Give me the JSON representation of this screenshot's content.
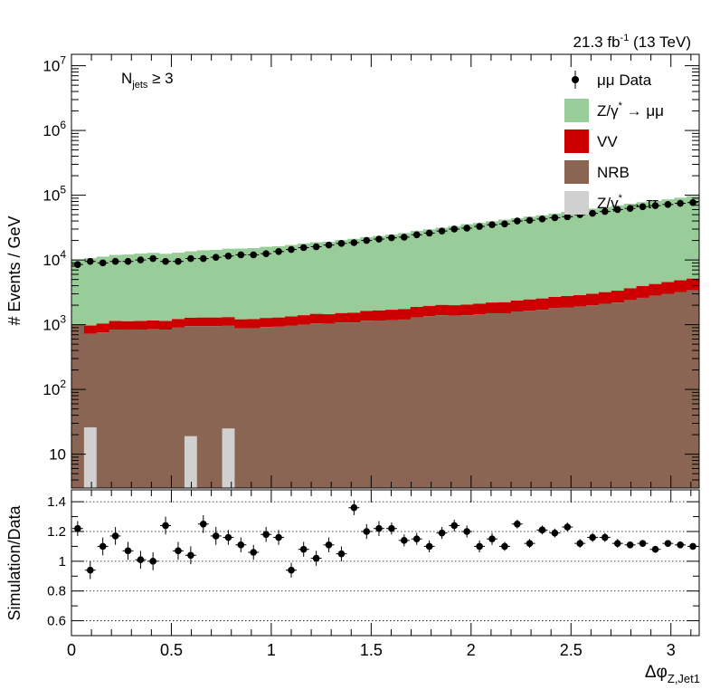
{
  "lumi_label": "21.3 fb",
  "lumi_sup": "-1",
  "lumi_energy": " (13 TeV)",
  "njets_main": "N",
  "njets_sub": "jets",
  "njets_cond": " ≥ 3",
  "chart_data": [
    {
      "type": "area",
      "panel": "main",
      "ylabel": "# Events / GeV",
      "yscale": "log",
      "xlim": [
        0,
        3.1416
      ],
      "ylim": [
        3,
        15000000
      ],
      "y_tick_labels": [
        {
          "v": 10,
          "base": "10",
          "exp": ""
        },
        {
          "v": 100,
          "base": "10",
          "exp": "2"
        },
        {
          "v": 1000,
          "base": "10",
          "exp": "3"
        },
        {
          "v": 10000,
          "base": "10",
          "exp": "4"
        },
        {
          "v": 100000,
          "base": "10",
          "exp": "5"
        },
        {
          "v": 1000000,
          "base": "10",
          "exp": "6"
        },
        {
          "v": 10000000,
          "base": "10",
          "exp": "7"
        }
      ],
      "legend_position": "top-right",
      "legend": [
        {
          "name": "μμ Data",
          "style": "marker",
          "color": "#000000"
        },
        {
          "name": "Z/γ* → μμ",
          "base": "Z/γ",
          "sup": "*",
          "tail": " → μμ",
          "style": "fill",
          "color": "#98cc98"
        },
        {
          "name": "VV",
          "style": "fill",
          "color": "#cc0000"
        },
        {
          "name": "NRB",
          "style": "fill",
          "color": "#8b6553"
        },
        {
          "name": "Z/γ* → ττ",
          "base": "Z/γ",
          "sup": "*",
          "tail": " → ττ",
          "style": "fill",
          "color": "#d0d0d0"
        }
      ],
      "bins": {
        "nbins": 50,
        "xmin": 0,
        "xmax": 3.1416
      },
      "series": [
        {
          "name": "Z/γ* → ττ",
          "color": "#d0d0d0",
          "values": [
            0,
            26,
            0,
            0,
            0,
            0,
            0,
            0,
            0,
            19,
            0,
            0,
            25,
            0,
            0,
            0,
            0,
            0,
            0,
            0,
            0,
            0,
            0,
            0,
            0,
            0,
            0,
            0,
            0,
            0,
            0,
            0,
            0,
            0,
            0,
            0,
            0,
            0,
            0,
            0,
            0,
            0,
            0,
            0,
            0,
            0,
            0,
            0,
            0,
            0
          ]
        },
        {
          "name": "NRB",
          "color": "#8b6553",
          "values": [
            1000,
            720,
            760,
            840,
            830,
            840,
            850,
            840,
            900,
            950,
            950,
            950,
            960,
            880,
            880,
            920,
            930,
            960,
            1000,
            1050,
            1030,
            1080,
            1080,
            1150,
            1160,
            1180,
            1200,
            1300,
            1350,
            1400,
            1380,
            1400,
            1450,
            1500,
            1500,
            1600,
            1650,
            1700,
            1800,
            1850,
            1900,
            2000,
            2100,
            2200,
            2400,
            2600,
            2800,
            3000,
            3200,
            3400
          ]
        },
        {
          "name": "VV",
          "color": "#cc0000",
          "values": [
            0,
            250,
            280,
            300,
            300,
            300,
            310,
            300,
            320,
            330,
            340,
            340,
            350,
            330,
            340,
            350,
            360,
            380,
            400,
            420,
            420,
            430,
            450,
            480,
            500,
            520,
            540,
            580,
            600,
            620,
            620,
            640,
            660,
            700,
            720,
            760,
            800,
            840,
            880,
            920,
            960,
            1000,
            1080,
            1150,
            1250,
            1350,
            1450,
            1550,
            1650,
            1750
          ]
        },
        {
          "name": "Z/γ* → μμ",
          "color": "#98cc98",
          "values": [
            9000,
            9700,
            10200,
            10800,
            11000,
            11400,
            11700,
            11300,
            11700,
            12300,
            12800,
            13000,
            13600,
            13800,
            14000,
            14700,
            15000,
            15700,
            16600,
            17300,
            17600,
            18800,
            19700,
            20900,
            21800,
            22900,
            24300,
            26300,
            27800,
            29400,
            31300,
            33700,
            35300,
            37500,
            39800,
            41700,
            44300,
            46500,
            49500,
            52300,
            55800,
            59000,
            62400,
            66500,
            70200,
            74200,
            77400,
            81800,
            86500,
            91000
          ]
        }
      ],
      "data_points": {
        "name": "μμ Data",
        "x": [
          0.031,
          0.094,
          0.157,
          0.22,
          0.283,
          0.346,
          0.408,
          0.471,
          0.534,
          0.597,
          0.66,
          0.723,
          0.785,
          0.848,
          0.911,
          0.974,
          1.037,
          1.1,
          1.162,
          1.225,
          1.288,
          1.351,
          1.414,
          1.477,
          1.539,
          1.602,
          1.665,
          1.728,
          1.791,
          1.854,
          1.916,
          1.979,
          2.042,
          2.105,
          2.168,
          2.231,
          2.293,
          2.356,
          2.419,
          2.482,
          2.545,
          2.608,
          2.67,
          2.733,
          2.796,
          2.859,
          2.922,
          2.985,
          3.047,
          3.11
        ],
        "y": [
          8500,
          9500,
          9000,
          9500,
          9500,
          10000,
          10500,
          9500,
          9500,
          10500,
          10500,
          11000,
          11500,
          12000,
          12000,
          12500,
          13500,
          14500,
          15500,
          16000,
          17000,
          18000,
          18500,
          20000,
          21000,
          22000,
          22500,
          24500,
          26000,
          28000,
          30000,
          31000,
          33000,
          35000,
          36000,
          40000,
          41000,
          43000,
          45000,
          46500,
          50000,
          52500,
          56000,
          60000,
          62500,
          66500,
          69000,
          72000,
          75000,
          77000
        ]
      }
    },
    {
      "type": "scatter",
      "panel": "ratio",
      "xlabel": "Δφ",
      "xlabel_sub": "Z,Jet1",
      "ylabel": "Simulation/Data",
      "xlim": [
        0,
        3.1416
      ],
      "ylim": [
        0.5,
        1.48
      ],
      "gridlines": [
        0.6,
        0.8,
        1.0,
        1.2,
        1.4
      ],
      "x_tick_labels": [
        "0",
        "0.5",
        "1",
        "1.5",
        "2",
        "2.5",
        "3"
      ],
      "y_tick_labels": [
        "0.6",
        "0.8",
        "1",
        "1.2",
        "1.4"
      ],
      "x": [
        0.031,
        0.094,
        0.157,
        0.22,
        0.283,
        0.346,
        0.408,
        0.471,
        0.534,
        0.597,
        0.66,
        0.723,
        0.785,
        0.848,
        0.911,
        0.974,
        1.037,
        1.1,
        1.162,
        1.225,
        1.288,
        1.351,
        1.414,
        1.477,
        1.539,
        1.602,
        1.665,
        1.728,
        1.791,
        1.854,
        1.916,
        1.979,
        2.042,
        2.105,
        2.168,
        2.231,
        2.293,
        2.356,
        2.419,
        2.482,
        2.545,
        2.608,
        2.67,
        2.733,
        2.796,
        2.859,
        2.922,
        2.985,
        3.047,
        3.11
      ],
      "y": [
        1.22,
        0.94,
        1.1,
        1.17,
        1.07,
        1.01,
        1.0,
        1.24,
        1.07,
        1.04,
        1.25,
        1.17,
        1.16,
        1.11,
        1.06,
        1.18,
        1.16,
        0.94,
        1.08,
        1.02,
        1.11,
        1.05,
        1.36,
        1.2,
        1.22,
        1.22,
        1.14,
        1.15,
        1.1,
        1.19,
        1.24,
        1.2,
        1.1,
        1.15,
        1.1,
        1.25,
        1.12,
        1.21,
        1.19,
        1.23,
        1.12,
        1.16,
        1.16,
        1.12,
        1.11,
        1.12,
        1.08,
        1.12,
        1.11,
        1.1
      ],
      "err": [
        0.05,
        0.06,
        0.06,
        0.06,
        0.06,
        0.06,
        0.06,
        0.06,
        0.06,
        0.06,
        0.06,
        0.06,
        0.05,
        0.05,
        0.05,
        0.05,
        0.05,
        0.05,
        0.05,
        0.05,
        0.05,
        0.05,
        0.05,
        0.05,
        0.05,
        0.04,
        0.04,
        0.04,
        0.04,
        0.04,
        0.04,
        0.04,
        0.04,
        0.04,
        0.03,
        0.03,
        0.03,
        0.03,
        0.03,
        0.03,
        0.03,
        0.03,
        0.03,
        0.03,
        0.02,
        0.02,
        0.02,
        0.02,
        0.02,
        0.02
      ]
    }
  ]
}
